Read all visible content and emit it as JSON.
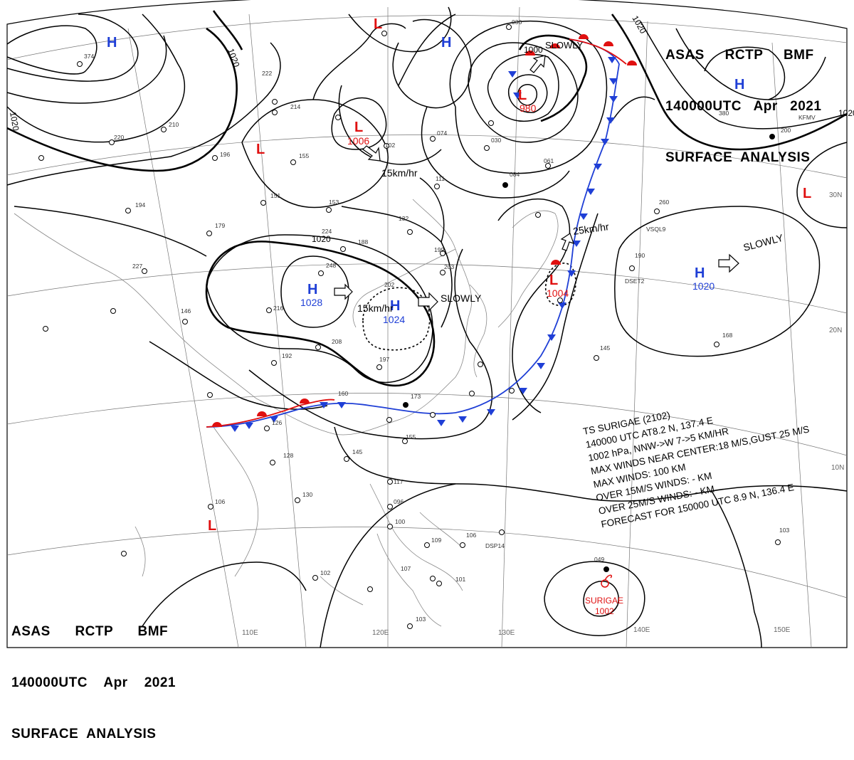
{
  "header_top_right": [
    "ASAS     RCTP     BMF",
    "140000UTC   Apr   2021",
    "SURFACE  ANALYSIS"
  ],
  "header_bottom_left": [
    "ASAS      RCTP      BMF",
    "140000UTC    Apr    2021",
    "SURFACE  ANALYSIS"
  ],
  "longitude_labels": [
    "110E",
    "120E",
    "130E",
    "140E",
    "150E"
  ],
  "latitude_labels": [
    "30N",
    "20N",
    "10N"
  ],
  "isobar_labels": [
    "1020",
    "1020",
    "1020",
    "1020",
    "1020",
    "1000"
  ],
  "pressure_centers": [
    {
      "type": "H",
      "value": ""
    },
    {
      "type": "H",
      "value": ""
    },
    {
      "type": "H",
      "value": ""
    },
    {
      "type": "L",
      "value": ""
    },
    {
      "type": "L",
      "value": "1006"
    },
    {
      "type": "L",
      "value": "980"
    },
    {
      "type": "L",
      "value": "1004"
    },
    {
      "type": "L",
      "value": ""
    },
    {
      "type": "L",
      "value": ""
    },
    {
      "type": "H",
      "value": "1028"
    },
    {
      "type": "H",
      "value": "1024"
    },
    {
      "type": "H",
      "value": "1020"
    }
  ],
  "motion_labels": [
    "SLOWLY",
    "15km/hr",
    "15km/hr",
    "SLOWLY",
    "25km/hr",
    "SLOWLY"
  ],
  "typhoon": {
    "name": "SURIGAE",
    "pressure": "1002",
    "info_lines": [
      "TS  SURIGAE  (2102)",
      "140000 UTC  AT8.2 N, 137.4 E",
      "1002 hPa, NNW->W  7->5 KM/HR",
      "MAX WINDS NEAR CENTER:18 M/S,GUST 25 M/S",
      "MAX WINDS: 100 KM",
      "OVER 15M/S WINDS: - KM",
      "OVER 25M/S WINDS: - KM",
      "FORECAST FOR 150000 UTC 8.9 N, 136.4 E"
    ]
  },
  "station_labels": [
    "374",
    "222",
    "214",
    "210",
    "220",
    "196",
    "155",
    "151",
    "153",
    "179",
    "194",
    "227",
    "146",
    "188",
    "132",
    "203",
    "199",
    "248",
    "216",
    "224",
    "208",
    "192",
    "197",
    "202",
    "173",
    "160",
    "126",
    "128",
    "106",
    "130",
    "145",
    "155",
    "117",
    "096",
    "109",
    "106",
    "100",
    "102",
    "107",
    "103",
    "101",
    "084",
    "061",
    "074",
    "030",
    "102",
    "111",
    "036",
    "260",
    "190",
    "145",
    "168",
    "103",
    "049",
    "DSP14",
    "DSET2",
    "VSQL9",
    "KFMV",
    "380",
    "200"
  ],
  "colors": {
    "high": "#1f3fd6",
    "low": "#e01010",
    "front_warm": "#e01010",
    "front_cold": "#1f3fd6",
    "isobar": "#000000",
    "grid": "#888888"
  }
}
